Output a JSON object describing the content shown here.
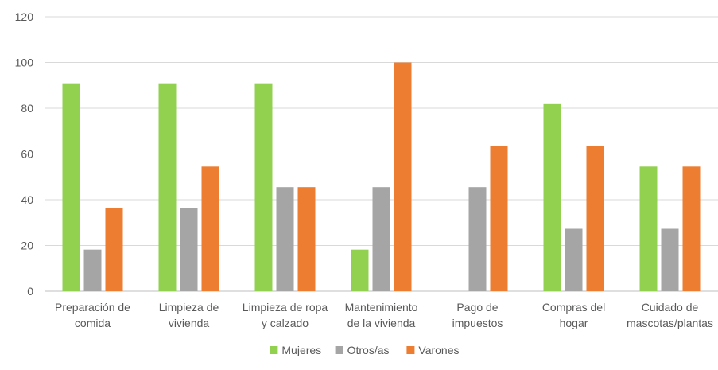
{
  "chart_data": {
    "type": "bar",
    "title": "",
    "xlabel": "",
    "ylabel": "",
    "ylim": [
      0,
      120
    ],
    "yticks": [
      0,
      20,
      40,
      60,
      80,
      100,
      120
    ],
    "grid": true,
    "legend_position": "bottom",
    "categories": [
      [
        "Preparación de",
        "comida"
      ],
      [
        "Limpieza de",
        "vivienda"
      ],
      [
        "Limpieza de ropa",
        "y calzado"
      ],
      [
        "Mantenimiento",
        "de la vivienda"
      ],
      [
        "Pago de",
        "impuestos"
      ],
      [
        "Compras del",
        "hogar"
      ],
      [
        "Cuidado de",
        "mascotas/plantas"
      ]
    ],
    "series": [
      {
        "name": "Mujeres",
        "color": "#92d050",
        "values": [
          90.9,
          90.9,
          90.9,
          18.2,
          0,
          81.8,
          54.5
        ]
      },
      {
        "name": "Otros/as",
        "color": "#a5a5a5",
        "values": [
          18.2,
          36.4,
          45.5,
          45.5,
          45.5,
          27.3,
          27.3
        ]
      },
      {
        "name": "Varones",
        "color": "#ed7d31",
        "values": [
          36.4,
          54.5,
          45.5,
          100,
          63.6,
          63.6,
          54.5
        ]
      }
    ]
  }
}
